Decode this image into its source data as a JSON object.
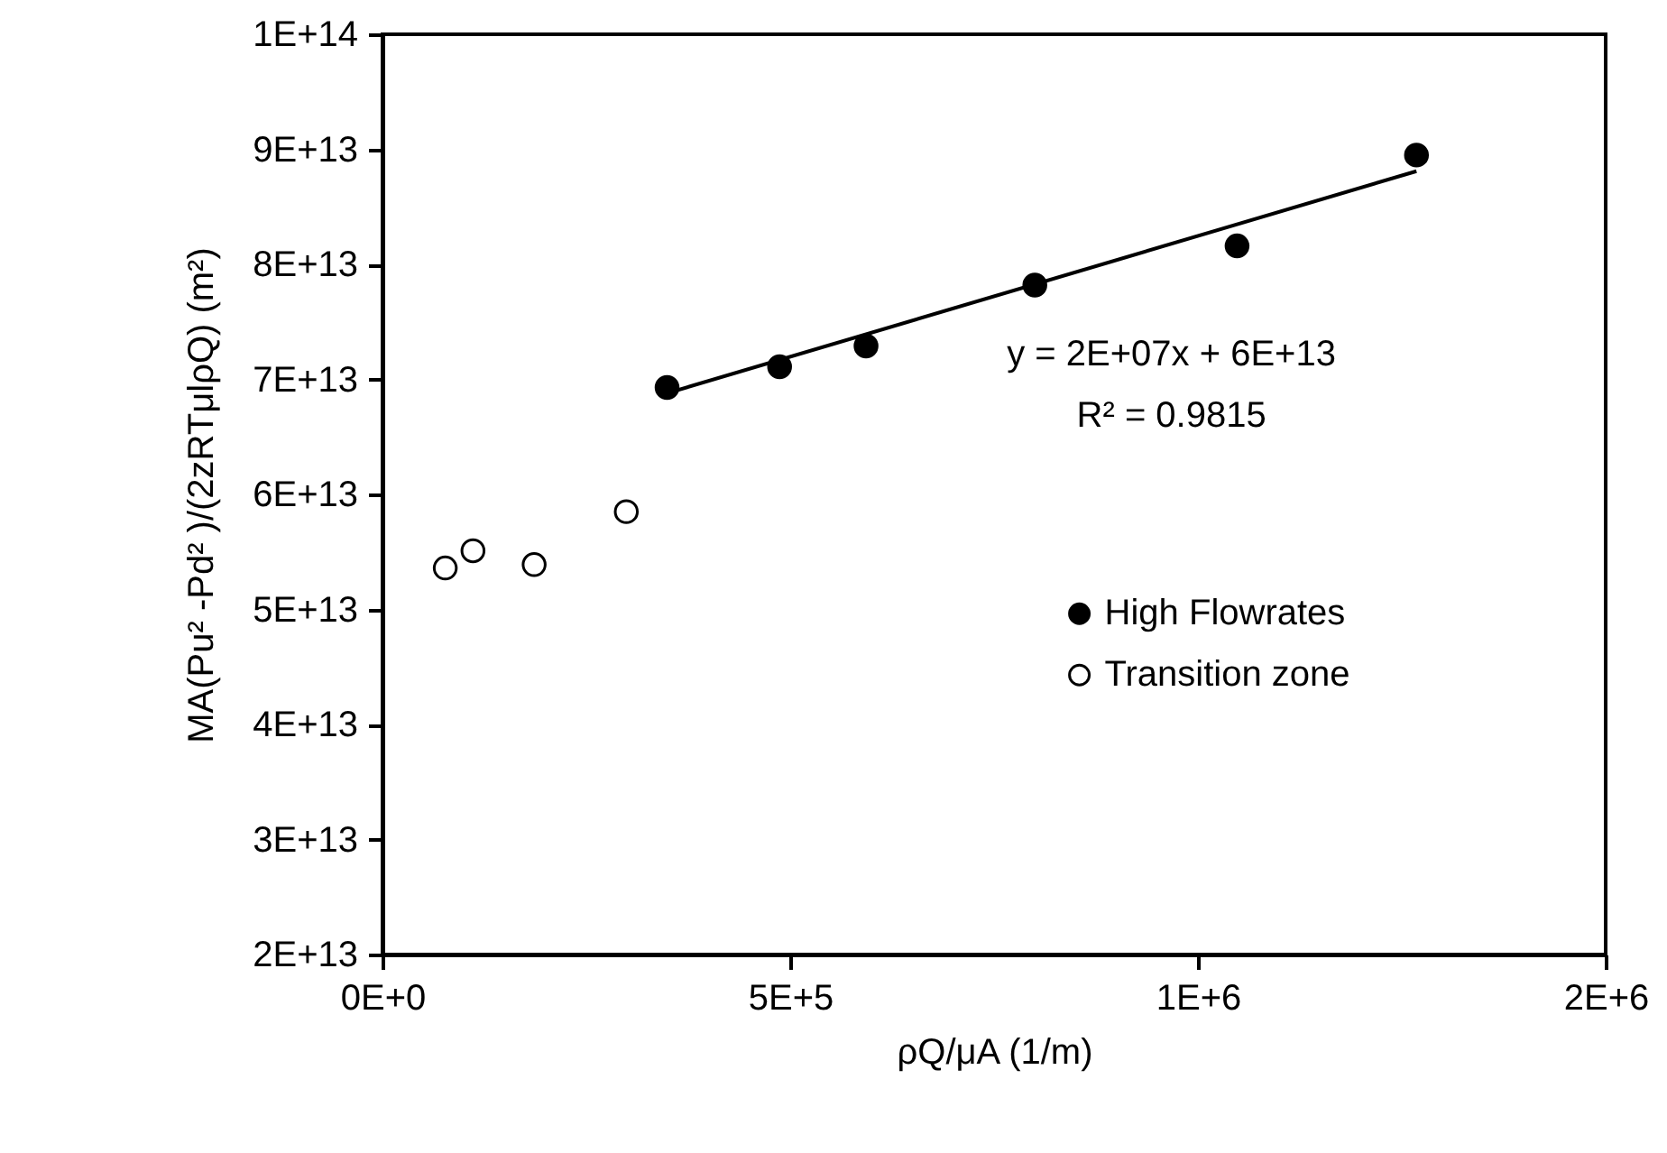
{
  "chart_data": {
    "type": "scatter",
    "xlabel": "ρQ/μA  (1/m)",
    "ylabel": "MA(Pu² -Pd² )/(2zRTμlρQ)  (m²)",
    "xlim": [
      0,
      1500000
    ],
    "xticks": [
      {
        "value": 0,
        "label": "0E+0"
      },
      {
        "value": 500000,
        "label": "5E+5"
      },
      {
        "value": 1000000,
        "label": "1E+6"
      },
      {
        "value": 1500000,
        "label": "2E+6"
      }
    ],
    "ylim": [
      20000000000000,
      100000000000000
    ],
    "yticks": [
      {
        "value": 20000000000000,
        "label": "2E+13"
      },
      {
        "value": 30000000000000,
        "label": "3E+13"
      },
      {
        "value": 40000000000000,
        "label": "4E+13"
      },
      {
        "value": 50000000000000,
        "label": "5E+13"
      },
      {
        "value": 60000000000000,
        "label": "6E+13"
      },
      {
        "value": 70000000000000,
        "label": "7E+13"
      },
      {
        "value": 80000000000000,
        "label": "8E+13"
      },
      {
        "value": 90000000000000,
        "label": "9E+13"
      },
      {
        "value": 100000000000000,
        "label": "1E+14"
      }
    ],
    "grid": false,
    "legend": "right",
    "series": [
      {
        "name": "High Flowrates",
        "color": "#000000",
        "marker": "circle",
        "x": [
          349000,
          487000,
          593000,
          800000,
          1048000,
          1268000
        ],
        "values": [
          69300000000000,
          71100000000000,
          72900000000000,
          78200000000000,
          81600000000000,
          89500000000000
        ]
      },
      {
        "name": "Transition zone",
        "color": "#ffffff",
        "marker": "circle",
        "x": [
          77000,
          111000,
          186000,
          299000
        ],
        "values": [
          53600000000000,
          55100000000000,
          53900000000000,
          58500000000000
        ]
      },
      {
        "type": "line",
        "color": "#000000",
        "marker": "none",
        "x": [
          349000,
          1268000
        ],
        "values": [
          68800000000000,
          88100000000000
        ]
      }
    ],
    "annotations": [
      "y = 2E+07x + 6E+13",
      "R² = 0.9815"
    ]
  }
}
